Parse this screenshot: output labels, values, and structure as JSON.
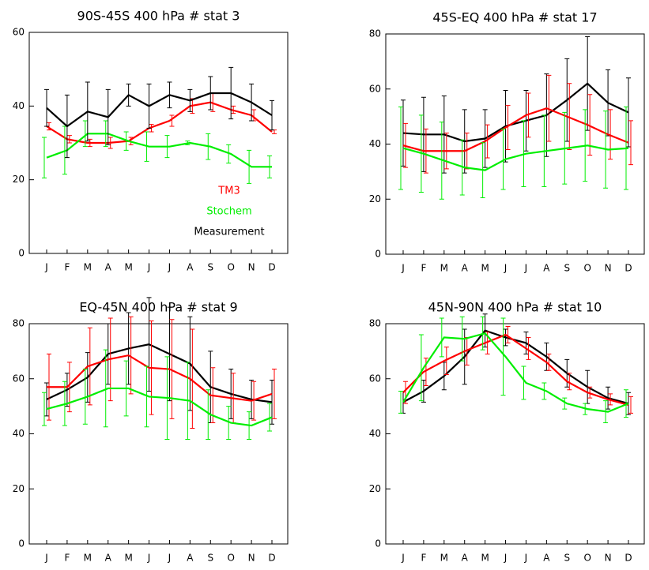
{
  "chart_data": [
    {
      "type": "line",
      "title": "90S-45S 400 hPa # stat 3",
      "categories": [
        "J",
        "F",
        "M",
        "A",
        "M",
        "J",
        "J",
        "A",
        "S",
        "O",
        "N",
        "D"
      ],
      "ylim": [
        0,
        60
      ],
      "yticks": [
        0,
        20,
        40,
        60
      ],
      "series": [
        {
          "name": "TM3",
          "color": "#ff0000",
          "values": [
            34.5,
            31,
            30,
            30,
            30.5,
            34,
            36,
            40,
            41,
            39,
            37.5,
            33
          ],
          "errors": [
            1,
            1,
            1,
            1.5,
            1,
            1,
            1.5,
            2,
            2.5,
            1,
            1.5,
            0.5
          ]
        },
        {
          "name": "Stochem",
          "color": "#00ee00",
          "values": [
            26,
            28,
            32.5,
            32.5,
            30.5,
            29,
            29,
            30,
            29,
            27,
            23.5,
            23.5
          ],
          "errors": [
            5.5,
            6.5,
            3.5,
            3.5,
            2.5,
            4,
            3,
            0.5,
            3.5,
            2.5,
            4.5,
            3
          ]
        },
        {
          "name": "Measurement",
          "color": "#000000",
          "values": [
            39.5,
            34.5,
            38.5,
            37,
            43,
            40,
            43,
            41.5,
            43.5,
            43.5,
            41,
            37.5
          ],
          "errors": [
            5,
            8.5,
            8,
            7.5,
            3,
            6,
            3.5,
            3,
            4.5,
            7,
            5,
            4
          ]
        }
      ]
    },
    {
      "type": "line",
      "title": "45S-EQ 400 hPa # stat 17",
      "categories": [
        "J",
        "F",
        "M",
        "A",
        "M",
        "J",
        "J",
        "A",
        "S",
        "O",
        "N",
        "D"
      ],
      "ylim": [
        0,
        80
      ],
      "yticks": [
        0,
        20,
        40,
        60,
        80
      ],
      "series": [
        {
          "color": "#000000",
          "values": [
            44,
            43.5,
            43.5,
            41,
            42,
            46.5,
            48.5,
            50.5,
            56,
            62,
            55,
            51.5
          ],
          "errors": [
            12,
            13.5,
            14,
            11.5,
            10.5,
            13,
            11,
            15,
            15,
            17,
            12,
            12.5
          ]
        },
        {
          "color": "#ff0000",
          "values": [
            39.5,
            37.5,
            37.5,
            37.5,
            41,
            46,
            50.5,
            53,
            50,
            47,
            43.5,
            40.5
          ],
          "errors": [
            8,
            8,
            6.5,
            6.5,
            6,
            8,
            8,
            12,
            12,
            11,
            9,
            8
          ]
        },
        {
          "color": "#00ee00",
          "values": [
            38.5,
            36.5,
            34,
            31.5,
            30.5,
            34.5,
            36.5,
            37.5,
            38.5,
            39.5,
            38,
            38.5
          ],
          "errors": [
            15,
            14,
            14,
            10,
            10,
            11,
            12,
            13,
            13,
            13,
            14,
            15
          ]
        }
      ]
    },
    {
      "type": "line",
      "title": "EQ-45N 400 hPa # stat 9",
      "categories": [
        "J",
        "F",
        "M",
        "A",
        "M",
        "J",
        "J",
        "A",
        "S",
        "O",
        "N",
        "D"
      ],
      "ylim": [
        0,
        80
      ],
      "yticks": [
        0,
        20,
        40,
        60,
        80
      ],
      "series": [
        {
          "color": "#000000",
          "values": [
            52.5,
            56,
            60.5,
            69,
            71,
            72.5,
            69,
            65.5,
            57,
            54.5,
            52.5,
            51.5
          ],
          "errors": [
            6,
            6,
            9,
            11,
            13,
            17,
            17,
            17,
            13,
            9,
            7,
            8
          ]
        },
        {
          "color": "#ff0000",
          "values": [
            57,
            57,
            64.5,
            67,
            68.5,
            64,
            63.5,
            60,
            54,
            53,
            52,
            54.5
          ],
          "errors": [
            12,
            9,
            14,
            15,
            14,
            17,
            18,
            18,
            10,
            9,
            7,
            9
          ]
        },
        {
          "color": "#00ee00",
          "values": [
            49,
            51,
            53.5,
            56.5,
            56.5,
            53.5,
            53,
            52,
            47,
            44,
            43,
            46
          ],
          "errors": [
            6,
            8,
            10,
            14,
            10,
            11,
            15,
            14,
            9,
            6,
            5,
            5
          ]
        }
      ]
    },
    {
      "type": "line",
      "title": "45N-90N 400 hPa # stat 10",
      "categories": [
        "J",
        "F",
        "M",
        "A",
        "M",
        "J",
        "J",
        "A",
        "S",
        "O",
        "N",
        "D"
      ],
      "ylim": [
        0,
        80
      ],
      "yticks": [
        0,
        20,
        40,
        60,
        80
      ],
      "series": [
        {
          "color": "#000000",
          "values": [
            51.5,
            55.5,
            61,
            68,
            77.5,
            75,
            73,
            68,
            62,
            57,
            53,
            51
          ],
          "errors": [
            4,
            4,
            5,
            10,
            6,
            3,
            4,
            5,
            5,
            6,
            4,
            4
          ]
        },
        {
          "color": "#ff0000",
          "values": [
            55,
            62.5,
            66.5,
            70,
            73,
            76,
            71,
            66,
            59,
            55,
            52.5,
            50.5
          ],
          "errors": [
            4,
            5,
            5,
            5,
            4,
            3,
            4,
            3,
            3,
            2,
            2,
            3
          ]
        },
        {
          "color": "#00ee00",
          "values": [
            51.5,
            64,
            75,
            74.5,
            76.5,
            68,
            58.5,
            55.5,
            51,
            49,
            48,
            51
          ],
          "errors": [
            4,
            12,
            7,
            8,
            6,
            14,
            6,
            3,
            2,
            2,
            4,
            5
          ]
        }
      ]
    }
  ]
}
